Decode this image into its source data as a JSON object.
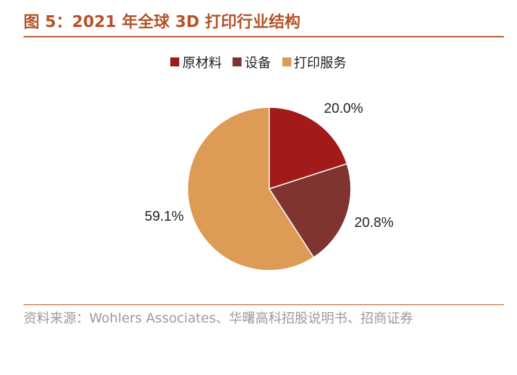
{
  "title": "图 5：2021 年全球 3D 打印行业结构",
  "source": "资料来源：Wohlers Associates、华曙高科招股说明书、招商证券",
  "chart_data": {
    "type": "pie",
    "title": "",
    "series": [
      {
        "name": "原材料",
        "value": 20.0,
        "label": "20.0%",
        "color": "#a31a1a"
      },
      {
        "name": "设备",
        "value": 20.8,
        "label": "20.8%",
        "color": "#7f3430"
      },
      {
        "name": "打印服务",
        "value": 59.1,
        "label": "59.1%",
        "color": "#dd9b55"
      }
    ],
    "legend_position": "top"
  }
}
